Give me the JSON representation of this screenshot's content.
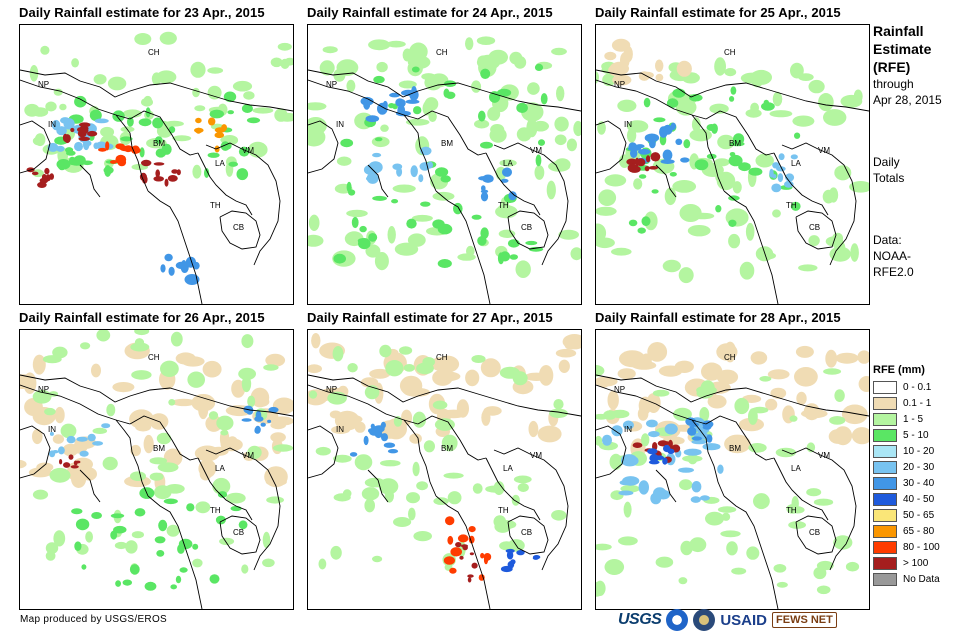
{
  "panels": [
    {
      "title": "Daily Rainfall estimate for 23 Apr., 2015"
    },
    {
      "title": "Daily Rainfall estimate for 24 Apr., 2015"
    },
    {
      "title": "Daily Rainfall estimate for 25 Apr., 2015"
    },
    {
      "title": "Daily Rainfall estimate for 26 Apr., 2015"
    },
    {
      "title": "Daily Rainfall estimate for 27 Apr., 2015"
    },
    {
      "title": "Daily Rainfall estimate for 28 Apr., 2015"
    }
  ],
  "country_labels": [
    "CH",
    "NP",
    "IN",
    "BM",
    "VM",
    "LA",
    "TH",
    "CB"
  ],
  "side": {
    "title_line1": "Rainfall",
    "title_line2": "Estimate",
    "title_line3": "(RFE)",
    "through": "through",
    "through_date": "Apr 28, 2015",
    "totals_line1": "Daily",
    "totals_line2": "Totals",
    "data_line1": "Data:",
    "data_line2": "NOAA-",
    "data_line3": "RFE2.0"
  },
  "legend": {
    "title": "RFE (mm)",
    "items": [
      {
        "label": "0 - 0.1",
        "color": "#ffffff"
      },
      {
        "label": "0.1 - 1",
        "color": "#f0dcb4"
      },
      {
        "label": "1 - 5",
        "color": "#b4f5a0"
      },
      {
        "label": "5 - 10",
        "color": "#5ae664"
      },
      {
        "label": "10 - 20",
        "color": "#aae6f5"
      },
      {
        "label": "20 - 30",
        "color": "#78c3f0"
      },
      {
        "label": "30 - 40",
        "color": "#4196e6"
      },
      {
        "label": "40 - 50",
        "color": "#1e5adc"
      },
      {
        "label": "50 - 65",
        "color": "#fae678"
      },
      {
        "label": "65 - 80",
        "color": "#fa9600"
      },
      {
        "label": "80 - 100",
        "color": "#ff3c00"
      },
      {
        "label": "> 100",
        "color": "#a51e1e"
      },
      {
        "label": "No Data",
        "color": "#999999"
      }
    ]
  },
  "credit": "Map produced by USGS/EROS",
  "logos": {
    "usgs": "USGS",
    "usaid": "USAID",
    "fews": "FEWS NET"
  }
}
